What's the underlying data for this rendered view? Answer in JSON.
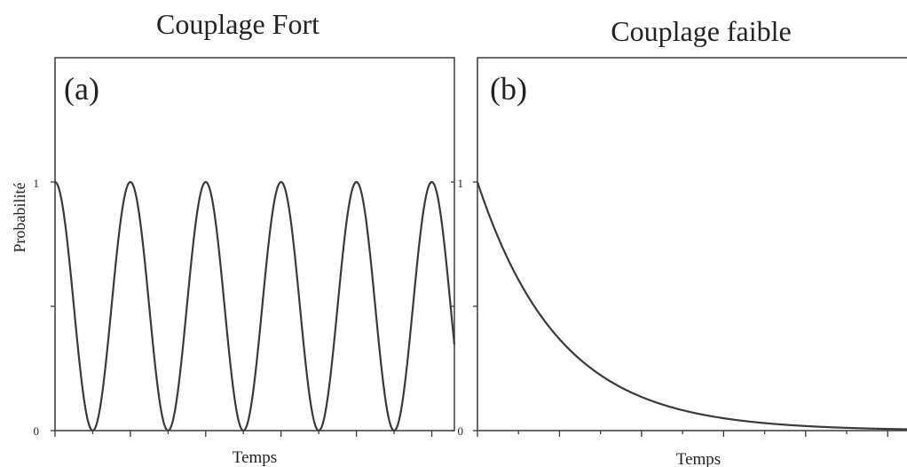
{
  "colors": {
    "line": "#3a3a3a",
    "axis": "#3a3a3a",
    "text": "#222222",
    "background": "#ffffff"
  },
  "chart_data": [
    {
      "type": "line",
      "panel_label": "(a)",
      "title": "Couplage Fort",
      "xlabel": "Temps",
      "ylabel": "Probabilité",
      "xlim": [
        0,
        5.3
      ],
      "ylim": [
        0,
        1.5
      ],
      "yticks": [
        0,
        1
      ],
      "ytick_labels": [
        "0",
        "1"
      ],
      "xticks": [
        0,
        0.5,
        1,
        1.5,
        2,
        2.5,
        3,
        3.5,
        4,
        4.5,
        5
      ],
      "grid": false,
      "series": [
        {
          "function": "cos^2(pi*t)",
          "x": [
            0,
            0.25,
            0.5,
            0.75,
            1,
            1.25,
            1.5,
            1.75,
            2,
            2.25,
            2.5,
            2.75,
            3,
            3.25,
            3.5,
            3.75,
            4,
            4.25,
            4.5,
            4.75,
            5,
            5.3
          ],
          "values": [
            1,
            0.5,
            0,
            0.5,
            1,
            0.5,
            0,
            0.5,
            1,
            0.5,
            0,
            0.5,
            1,
            0.5,
            0,
            0.5,
            1,
            0.5,
            0,
            0.5,
            1,
            0.35
          ]
        }
      ]
    },
    {
      "type": "line",
      "panel_label": "(b)",
      "title": "Couplage faible",
      "xlabel": "Temps",
      "ylabel": "",
      "xlim": [
        0,
        5.3
      ],
      "ylim": [
        0,
        1.5
      ],
      "yticks": [
        0,
        1
      ],
      "ytick_labels": [
        "0",
        "1"
      ],
      "xticks": [
        0,
        0.5,
        1,
        1.5,
        2,
        2.5,
        3,
        3.5,
        4,
        4.5,
        5
      ],
      "grid": false,
      "series": [
        {
          "function": "exp(-t)",
          "x": [
            0,
            0.5,
            1,
            1.5,
            2,
            2.5,
            3,
            3.5,
            4,
            4.5,
            5,
            5.3
          ],
          "values": [
            1,
            0.61,
            0.37,
            0.22,
            0.14,
            0.08,
            0.05,
            0.03,
            0.02,
            0.01,
            0.007,
            0.005
          ]
        }
      ]
    }
  ]
}
